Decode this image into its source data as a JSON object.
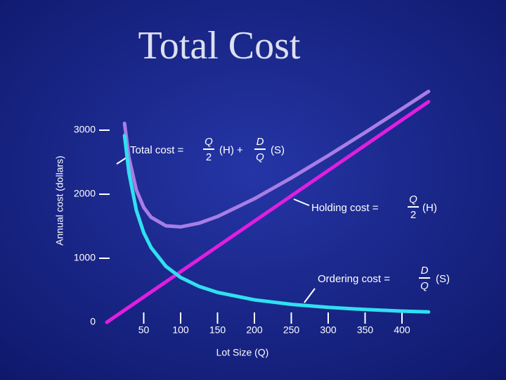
{
  "chart_data": {
    "type": "line",
    "title": "Total Cost",
    "ylabel": "Annual cost (dollars)",
    "xlabel": "Lot Size (Q)",
    "xlim": [
      0,
      440
    ],
    "xticks": [
      50,
      100,
      150,
      200,
      250,
      300,
      350,
      400
    ],
    "ylim": [
      0,
      3500
    ],
    "yticks": [
      0,
      1000,
      2000,
      3000
    ],
    "series": [
      {
        "color": "#a77de6",
        "x": [
          24,
          30,
          40,
          50,
          60,
          80,
          100,
          125,
          150,
          200,
          250,
          300,
          350,
          400,
          436
        ],
        "values": [
          3107,
          2570,
          2066,
          1795,
          1641,
          1507,
          1490,
          1548,
          1652,
          1930,
          2255,
          2603,
          2965,
          3335,
          3605
        ]
      },
      {
        "color": "#e01ee0",
        "x": [
          0,
          436
        ],
        "values": [
          0,
          3444
        ]
      },
      {
        "color": "#30e0f0",
        "x": [
          24,
          30,
          40,
          50,
          60,
          80,
          100,
          125,
          150,
          200,
          250,
          300,
          350,
          400,
          436
        ],
        "values": [
          2917,
          2333,
          1750,
          1400,
          1167,
          875,
          700,
          560,
          467,
          350,
          280,
          233,
          200,
          175,
          161
        ]
      }
    ],
    "annotations": {
      "total": {
        "lead": "Total cost =",
        "num1": "Q",
        "den1": "2",
        "mid": "(H) +",
        "num2": "D",
        "den2": "Q",
        "tail": "(S)"
      },
      "holding": {
        "lead": "Holding cost =",
        "num": "Q",
        "den": "2",
        "tail": "(H)"
      },
      "ordering": {
        "lead": "Ordering cost =",
        "num": "D",
        "den": "Q",
        "tail": "(S)"
      }
    }
  }
}
